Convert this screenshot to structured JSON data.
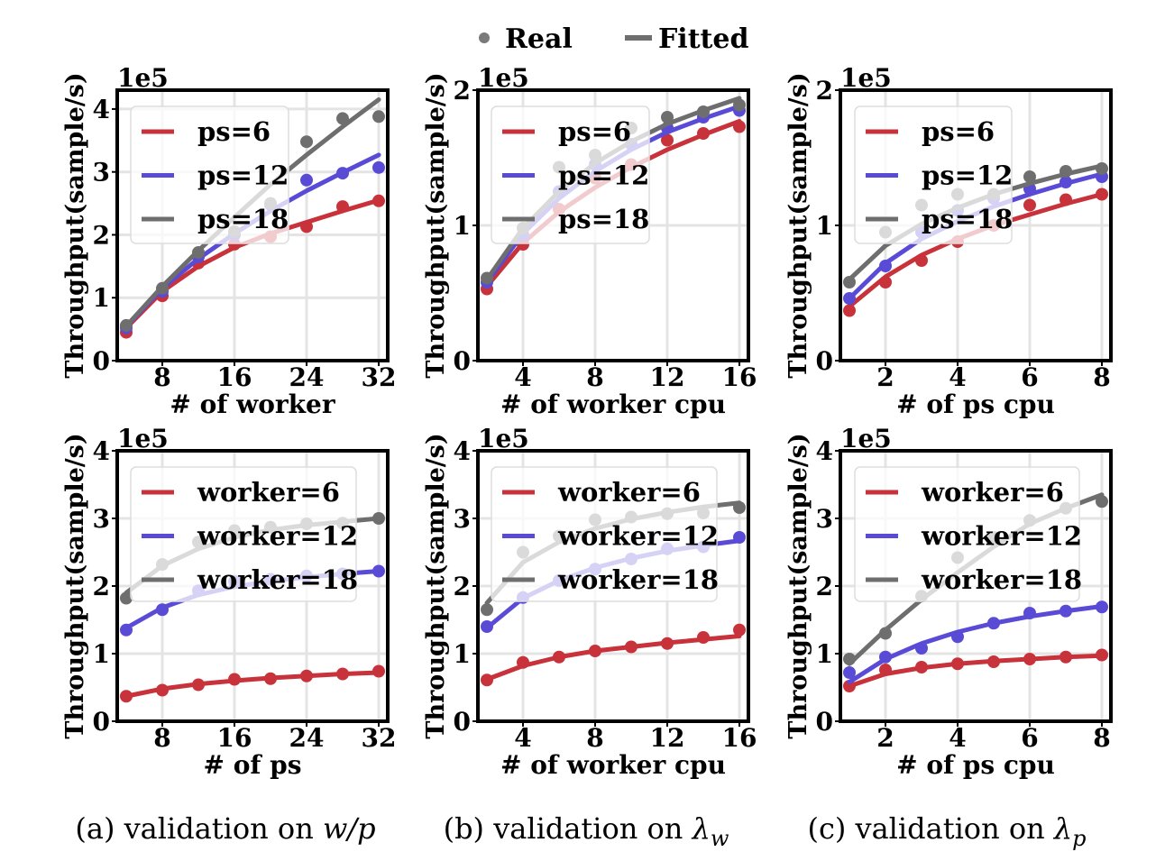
{
  "legend": {
    "real_label": "Real",
    "fitted_label": "Fitted"
  },
  "colors": {
    "red": "#c8323a",
    "blue": "#5a4bd6",
    "gray": "#6e6e6e"
  },
  "captions": [
    {
      "text": "(a)  validation on ",
      "math": "w/p",
      "sub": ""
    },
    {
      "text": "(b)  validation on ",
      "math": "λ",
      "sub": "w"
    },
    {
      "text": "(c)  validation on ",
      "math": "λ",
      "sub": "p"
    }
  ],
  "chart_data": [
    {
      "type": "line",
      "ylabel": "Throughput(sample/s)",
      "exponent_label": "1e5",
      "xlabel": "# of worker",
      "xticks": [
        8,
        16,
        24,
        32
      ],
      "xlim": [
        3,
        33
      ],
      "yticks": [
        0,
        1,
        2,
        3,
        4
      ],
      "ylim": [
        0,
        4.3
      ],
      "series": [
        {
          "name": "ps=6",
          "color": "red",
          "x": [
            4,
            8,
            12,
            16,
            20,
            24,
            28,
            32
          ],
          "real": [
            0.45,
            1.03,
            1.55,
            1.85,
            1.97,
            2.13,
            2.45,
            2.54
          ],
          "fitted": [
            0.52,
            1.1,
            1.5,
            1.8,
            2.02,
            2.2,
            2.38,
            2.55
          ]
        },
        {
          "name": "ps=12",
          "color": "blue",
          "x": [
            4,
            8,
            12,
            16,
            20,
            24,
            28,
            32
          ],
          "real": [
            0.52,
            1.1,
            1.65,
            2.0,
            2.48,
            2.87,
            2.98,
            3.07
          ],
          "fitted": [
            0.54,
            1.15,
            1.62,
            2.02,
            2.38,
            2.7,
            2.99,
            3.27
          ]
        },
        {
          "name": "ps=18",
          "color": "gray",
          "x": [
            4,
            8,
            12,
            16,
            20,
            24,
            28,
            32
          ],
          "real": [
            0.56,
            1.15,
            1.72,
            2.05,
            2.5,
            3.48,
            3.85,
            3.88
          ],
          "fitted": [
            0.55,
            1.18,
            1.75,
            2.28,
            2.8,
            3.27,
            3.72,
            4.15
          ]
        }
      ]
    },
    {
      "type": "line",
      "ylabel": "Throughput(sample/s)",
      "exponent_label": "1e5",
      "xlabel": "# of worker cpu",
      "xticks": [
        4,
        8,
        12,
        16
      ],
      "xlim": [
        1.5,
        16.5
      ],
      "yticks": [
        0,
        1,
        2
      ],
      "ylim": [
        0,
        2
      ],
      "series": [
        {
          "name": "ps=6",
          "color": "red",
          "x": [
            2,
            4,
            6,
            8,
            10,
            12,
            14,
            16
          ],
          "real": [
            0.53,
            0.86,
            1.12,
            1.35,
            1.45,
            1.63,
            1.68,
            1.73
          ],
          "fitted": [
            0.55,
            0.87,
            1.1,
            1.28,
            1.43,
            1.56,
            1.67,
            1.77
          ]
        },
        {
          "name": "ps=12",
          "color": "blue",
          "x": [
            2,
            4,
            6,
            8,
            10,
            12,
            14,
            16
          ],
          "real": [
            0.58,
            0.93,
            1.25,
            1.45,
            1.6,
            1.72,
            1.8,
            1.85
          ],
          "fitted": [
            0.58,
            0.94,
            1.2,
            1.4,
            1.56,
            1.69,
            1.79,
            1.88
          ]
        },
        {
          "name": "ps=18",
          "color": "gray",
          "x": [
            2,
            4,
            6,
            8,
            10,
            12,
            14,
            16
          ],
          "real": [
            0.61,
            0.98,
            1.43,
            1.52,
            1.72,
            1.8,
            1.84,
            1.89
          ],
          "fitted": [
            0.6,
            0.98,
            1.25,
            1.46,
            1.62,
            1.75,
            1.85,
            1.94
          ]
        }
      ]
    },
    {
      "type": "line",
      "ylabel": "Throughput(sample/s)",
      "exponent_label": "1e5",
      "xlabel": "# of ps cpu",
      "xticks": [
        2,
        4,
        6,
        8
      ],
      "xlim": [
        0.75,
        8.25
      ],
      "yticks": [
        0,
        1,
        2
      ],
      "ylim": [
        0,
        2
      ],
      "series": [
        {
          "name": "ps=6",
          "color": "red",
          "x": [
            1,
            2,
            3,
            4,
            5,
            6,
            7,
            8
          ],
          "real": [
            0.37,
            0.58,
            0.74,
            0.88,
            1.0,
            1.15,
            1.19,
            1.23
          ],
          "fitted": [
            0.4,
            0.62,
            0.78,
            0.9,
            1.0,
            1.08,
            1.16,
            1.23
          ]
        },
        {
          "name": "ps=12",
          "color": "blue",
          "x": [
            1,
            2,
            3,
            4,
            5,
            6,
            7,
            8
          ],
          "real": [
            0.46,
            0.7,
            0.95,
            1.11,
            1.2,
            1.27,
            1.32,
            1.36
          ],
          "fitted": [
            0.46,
            0.72,
            0.9,
            1.03,
            1.14,
            1.23,
            1.31,
            1.38
          ]
        },
        {
          "name": "ps=18",
          "color": "gray",
          "x": [
            1,
            2,
            3,
            4,
            5,
            6,
            7,
            8
          ],
          "real": [
            0.58,
            0.95,
            1.15,
            1.23,
            1.23,
            1.36,
            1.4,
            1.42
          ],
          "fitted": [
            0.6,
            0.85,
            1.01,
            1.13,
            1.23,
            1.31,
            1.38,
            1.44
          ]
        }
      ]
    },
    {
      "type": "line",
      "ylabel": "Throughput(sample/s)",
      "exponent_label": "1e5",
      "xlabel": "# of ps",
      "xticks": [
        8,
        16,
        24,
        32
      ],
      "xlim": [
        3,
        33
      ],
      "yticks": [
        0,
        1,
        2,
        3,
        4
      ],
      "ylim": [
        0,
        4
      ],
      "series": [
        {
          "name": "worker=6",
          "color": "red",
          "x": [
            4,
            8,
            12,
            16,
            20,
            24,
            28,
            32
          ],
          "real": [
            0.37,
            0.46,
            0.54,
            0.62,
            0.63,
            0.67,
            0.7,
            0.74
          ],
          "fitted": [
            0.37,
            0.48,
            0.55,
            0.6,
            0.64,
            0.67,
            0.7,
            0.72
          ]
        },
        {
          "name": "worker=12",
          "color": "blue",
          "x": [
            4,
            8,
            12,
            16,
            20,
            24,
            28,
            32
          ],
          "real": [
            1.35,
            1.65,
            1.93,
            2.07,
            2.1,
            2.15,
            2.18,
            2.22
          ],
          "fitted": [
            1.38,
            1.68,
            1.87,
            1.99,
            2.07,
            2.13,
            2.18,
            2.22
          ]
        },
        {
          "name": "worker=18",
          "color": "gray",
          "x": [
            4,
            8,
            12,
            16,
            20,
            24,
            28,
            32
          ],
          "real": [
            1.82,
            2.32,
            2.65,
            2.82,
            2.87,
            2.92,
            2.93,
            3.0
          ],
          "fitted": [
            1.9,
            2.3,
            2.55,
            2.72,
            2.83,
            2.9,
            2.95,
            3.0
          ]
        }
      ]
    },
    {
      "type": "line",
      "ylabel": "Throughput(sample/s)",
      "exponent_label": "1e5",
      "xlabel": "# of worker cpu",
      "xticks": [
        4,
        8,
        12,
        16
      ],
      "xlim": [
        1.5,
        16.5
      ],
      "yticks": [
        0,
        1,
        2,
        3,
        4
      ],
      "ylim": [
        0,
        4
      ],
      "series": [
        {
          "name": "worker=6",
          "color": "red",
          "x": [
            2,
            4,
            6,
            8,
            10,
            12,
            14,
            16
          ],
          "real": [
            0.61,
            0.87,
            0.95,
            1.04,
            1.1,
            1.15,
            1.24,
            1.35
          ],
          "fitted": [
            0.62,
            0.82,
            0.95,
            1.04,
            1.1,
            1.16,
            1.21,
            1.26
          ]
        },
        {
          "name": "worker=12",
          "color": "blue",
          "x": [
            2,
            4,
            6,
            8,
            10,
            12,
            14,
            16
          ],
          "real": [
            1.4,
            1.83,
            2.08,
            2.25,
            2.4,
            2.55,
            2.58,
            2.72
          ],
          "fitted": [
            1.38,
            1.82,
            2.08,
            2.27,
            2.41,
            2.52,
            2.6,
            2.67
          ]
        },
        {
          "name": "worker=18",
          "color": "gray",
          "x": [
            2,
            4,
            6,
            8,
            10,
            12,
            14,
            16
          ],
          "real": [
            1.65,
            2.5,
            2.74,
            2.98,
            3.02,
            3.07,
            3.08,
            3.16
          ],
          "fitted": [
            1.75,
            2.35,
            2.65,
            2.85,
            2.99,
            3.09,
            3.17,
            3.23
          ]
        }
      ]
    },
    {
      "type": "line",
      "ylabel": "Throughput(sample/s)",
      "exponent_label": "1e5",
      "xlabel": "# of ps cpu",
      "xticks": [
        2,
        4,
        6,
        8
      ],
      "xlim": [
        0.75,
        8.25
      ],
      "yticks": [
        0,
        1,
        2,
        3,
        4
      ],
      "ylim": [
        0,
        4
      ],
      "series": [
        {
          "name": "worker=6",
          "color": "red",
          "x": [
            1,
            2,
            3,
            4,
            5,
            6,
            7,
            8
          ],
          "real": [
            0.52,
            0.76,
            0.8,
            0.85,
            0.88,
            0.92,
            0.95,
            0.98
          ],
          "fitted": [
            0.52,
            0.7,
            0.79,
            0.85,
            0.89,
            0.92,
            0.95,
            0.97
          ]
        },
        {
          "name": "worker=12",
          "color": "blue",
          "x": [
            1,
            2,
            3,
            4,
            5,
            6,
            7,
            8
          ],
          "real": [
            0.72,
            0.95,
            1.08,
            1.25,
            1.45,
            1.6,
            1.63,
            1.69
          ],
          "fitted": [
            0.58,
            0.92,
            1.15,
            1.32,
            1.45,
            1.55,
            1.63,
            1.7
          ]
        },
        {
          "name": "worker=18",
          "color": "gray",
          "x": [
            1,
            2,
            3,
            4,
            5,
            6,
            7,
            8
          ],
          "real": [
            0.92,
            1.3,
            1.85,
            2.42,
            2.72,
            2.97,
            3.15,
            3.25
          ],
          "fitted": [
            0.85,
            1.35,
            1.8,
            2.2,
            2.58,
            2.92,
            3.15,
            3.35
          ]
        }
      ]
    }
  ]
}
